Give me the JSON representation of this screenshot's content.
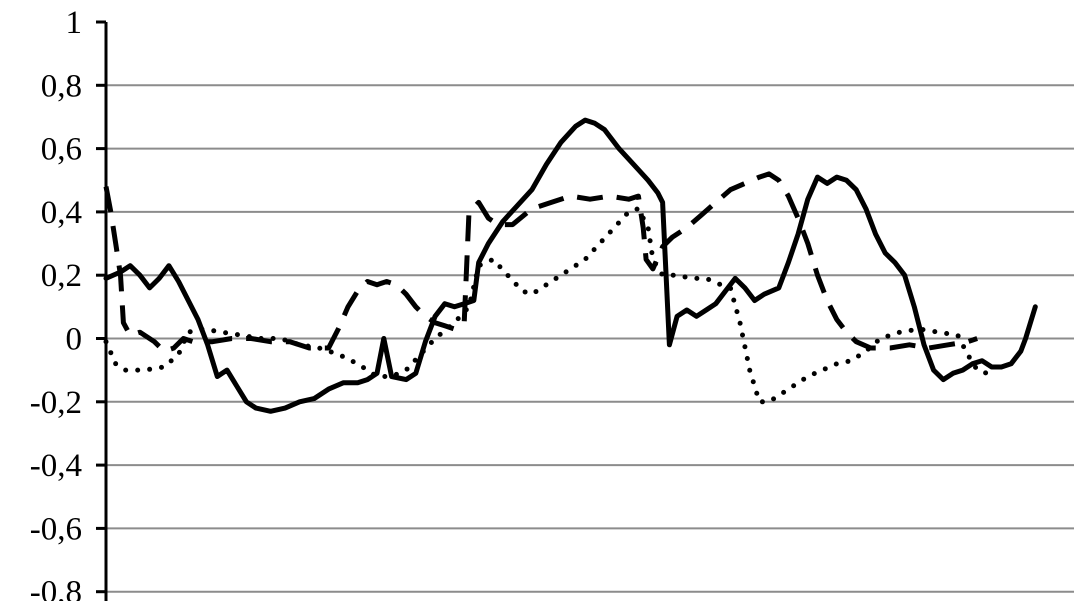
{
  "chart_data": {
    "type": "line",
    "title": "",
    "xlabel": "",
    "ylabel": "",
    "ylim": [
      -0.8,
      1.0
    ],
    "xlim": [
      0,
      100
    ],
    "grid": true,
    "legend": "none",
    "y_ticks": [
      {
        "value": 1.0,
        "label": "1"
      },
      {
        "value": 0.8,
        "label": "0,8"
      },
      {
        "value": 0.6,
        "label": "0,6"
      },
      {
        "value": 0.4,
        "label": "0,4"
      },
      {
        "value": 0.2,
        "label": "0,2"
      },
      {
        "value": 0.0,
        "label": "0"
      },
      {
        "value": -0.2,
        "label": "-0,2"
      },
      {
        "value": -0.4,
        "label": "-0,4"
      },
      {
        "value": -0.6,
        "label": "-0,6"
      },
      {
        "value": -0.8,
        "label": "-0,8"
      }
    ],
    "series": [
      {
        "style": "solid",
        "color": "#000000",
        "points": [
          [
            0,
            0.19
          ],
          [
            1.5,
            0.21
          ],
          [
            2.5,
            0.23
          ],
          [
            3.5,
            0.2
          ],
          [
            4.5,
            0.16
          ],
          [
            5.5,
            0.19
          ],
          [
            6.5,
            0.23
          ],
          [
            7.5,
            0.18
          ],
          [
            8.5,
            0.12
          ],
          [
            9.5,
            0.06
          ],
          [
            10.5,
            -0.02
          ],
          [
            11.5,
            -0.12
          ],
          [
            12.5,
            -0.1
          ],
          [
            13.5,
            -0.15
          ],
          [
            14.5,
            -0.2
          ],
          [
            15.5,
            -0.22
          ],
          [
            17,
            -0.23
          ],
          [
            18.5,
            -0.22
          ],
          [
            20,
            -0.2
          ],
          [
            21.5,
            -0.19
          ],
          [
            23,
            -0.16
          ],
          [
            24.5,
            -0.14
          ],
          [
            26,
            -0.14
          ],
          [
            27,
            -0.13
          ],
          [
            28,
            -0.11
          ],
          [
            28.7,
            0.0
          ],
          [
            29.5,
            -0.12
          ],
          [
            31,
            -0.13
          ],
          [
            32,
            -0.11
          ],
          [
            33,
            -0.01
          ],
          [
            34,
            0.07
          ],
          [
            35,
            0.11
          ],
          [
            36,
            0.1
          ],
          [
            37,
            0.11
          ],
          [
            38,
            0.12
          ],
          [
            38.5,
            0.24
          ],
          [
            39.5,
            0.3
          ],
          [
            41,
            0.37
          ],
          [
            42.5,
            0.42
          ],
          [
            44,
            0.47
          ],
          [
            45.5,
            0.55
          ],
          [
            47,
            0.62
          ],
          [
            48.5,
            0.67
          ],
          [
            49.5,
            0.69
          ],
          [
            50.5,
            0.68
          ],
          [
            51.5,
            0.66
          ],
          [
            53,
            0.6
          ],
          [
            54.5,
            0.55
          ],
          [
            56,
            0.5
          ],
          [
            57,
            0.46
          ],
          [
            57.5,
            0.43
          ],
          [
            58.2,
            -0.02
          ],
          [
            59,
            0.07
          ],
          [
            60,
            0.09
          ],
          [
            61,
            0.07
          ],
          [
            62,
            0.09
          ],
          [
            63,
            0.11
          ],
          [
            64,
            0.15
          ],
          [
            65,
            0.19
          ],
          [
            66,
            0.16
          ],
          [
            67,
            0.12
          ],
          [
            68,
            0.14
          ],
          [
            69.5,
            0.16
          ],
          [
            70.5,
            0.24
          ],
          [
            71.5,
            0.33
          ],
          [
            72.5,
            0.44
          ],
          [
            73.5,
            0.51
          ],
          [
            74.5,
            0.49
          ],
          [
            75.5,
            0.51
          ],
          [
            76.5,
            0.5
          ],
          [
            77.5,
            0.47
          ],
          [
            78.5,
            0.41
          ],
          [
            79.5,
            0.33
          ],
          [
            80.5,
            0.27
          ],
          [
            81.5,
            0.24
          ],
          [
            82.5,
            0.2
          ],
          [
            83.5,
            0.1
          ],
          [
            84.5,
            -0.02
          ],
          [
            85.5,
            -0.1
          ],
          [
            86.5,
            -0.13
          ],
          [
            87.5,
            -0.11
          ],
          [
            88.5,
            -0.1
          ],
          [
            89.5,
            -0.08
          ],
          [
            90.5,
            -0.07
          ],
          [
            91.5,
            -0.09
          ],
          [
            92.5,
            -0.09
          ],
          [
            93.5,
            -0.08
          ],
          [
            94.5,
            -0.04
          ],
          [
            95,
            0.0
          ],
          [
            96,
            0.1
          ]
        ]
      },
      {
        "style": "dashed",
        "color": "#000000",
        "points": [
          [
            0,
            0.48
          ],
          [
            0.5,
            0.4
          ],
          [
            1,
            0.3
          ],
          [
            1.5,
            0.2
          ],
          [
            1.8,
            0.05
          ],
          [
            2.5,
            0.01
          ],
          [
            3.5,
            0.02
          ],
          [
            5,
            -0.01
          ],
          [
            6,
            -0.04
          ],
          [
            7,
            -0.03
          ],
          [
            8,
            0.0
          ],
          [
            9,
            -0.01
          ],
          [
            11,
            -0.01
          ],
          [
            13,
            0.0
          ],
          [
            15,
            0.0
          ],
          [
            17,
            -0.01
          ],
          [
            19,
            -0.01
          ],
          [
            21,
            -0.03
          ],
          [
            23,
            -0.03
          ],
          [
            24,
            0.03
          ],
          [
            25,
            0.1
          ],
          [
            26,
            0.15
          ],
          [
            27,
            0.18
          ],
          [
            28,
            0.17
          ],
          [
            29,
            0.18
          ],
          [
            30,
            0.17
          ],
          [
            31,
            0.14
          ],
          [
            32,
            0.1
          ],
          [
            33,
            0.07
          ],
          [
            34,
            0.05
          ],
          [
            35,
            0.04
          ],
          [
            36,
            0.03
          ],
          [
            37,
            0.05
          ],
          [
            37.5,
            0.4
          ],
          [
            38.5,
            0.43
          ],
          [
            39.5,
            0.38
          ],
          [
            40.5,
            0.36
          ],
          [
            42,
            0.36
          ],
          [
            44,
            0.41
          ],
          [
            46,
            0.43
          ],
          [
            48,
            0.45
          ],
          [
            50,
            0.44
          ],
          [
            52,
            0.45
          ],
          [
            54,
            0.44
          ],
          [
            55,
            0.45
          ],
          [
            55.5,
            0.35
          ],
          [
            55.8,
            0.25
          ],
          [
            56.5,
            0.22
          ],
          [
            57.5,
            0.29
          ],
          [
            58.5,
            0.32
          ],
          [
            60,
            0.35
          ],
          [
            61.5,
            0.39
          ],
          [
            63,
            0.43
          ],
          [
            64.5,
            0.47
          ],
          [
            66,
            0.49
          ],
          [
            67.5,
            0.51
          ],
          [
            68.5,
            0.52
          ],
          [
            69.5,
            0.5
          ],
          [
            70.5,
            0.45
          ],
          [
            71.5,
            0.38
          ],
          [
            72.5,
            0.3
          ],
          [
            73.5,
            0.2
          ],
          [
            74.5,
            0.12
          ],
          [
            75.5,
            0.06
          ],
          [
            76.5,
            0.02
          ],
          [
            77.5,
            -0.01
          ],
          [
            79,
            -0.03
          ],
          [
            81,
            -0.03
          ],
          [
            83,
            -0.02
          ],
          [
            85,
            -0.03
          ],
          [
            87,
            -0.02
          ],
          [
            89,
            -0.01
          ],
          [
            90,
            0.0
          ]
        ]
      },
      {
        "style": "dotted",
        "color": "#000000",
        "points": [
          [
            0,
            -0.01
          ],
          [
            1,
            -0.08
          ],
          [
            2,
            -0.1
          ],
          [
            4,
            -0.1
          ],
          [
            6,
            -0.09
          ],
          [
            7.5,
            -0.05
          ],
          [
            8.5,
            0.02
          ],
          [
            10,
            0.03
          ],
          [
            12,
            0.02
          ],
          [
            14,
            0.01
          ],
          [
            16,
            0.0
          ],
          [
            18,
            0.0
          ],
          [
            20,
            -0.02
          ],
          [
            22,
            -0.03
          ],
          [
            24,
            -0.05
          ],
          [
            26,
            -0.08
          ],
          [
            28,
            -0.12
          ],
          [
            29.5,
            -0.12
          ],
          [
            31,
            -0.1
          ],
          [
            32.5,
            -0.05
          ],
          [
            34,
            0.0
          ],
          [
            36,
            0.05
          ],
          [
            37.5,
            0.1
          ],
          [
            38.5,
            0.23
          ],
          [
            40,
            0.25
          ],
          [
            41.5,
            0.2
          ],
          [
            43,
            0.15
          ],
          [
            44,
            0.14
          ],
          [
            45,
            0.16
          ],
          [
            46.5,
            0.19
          ],
          [
            48,
            0.22
          ],
          [
            49.5,
            0.25
          ],
          [
            51,
            0.3
          ],
          [
            52.5,
            0.35
          ],
          [
            54,
            0.4
          ],
          [
            55,
            0.41
          ],
          [
            56,
            0.35
          ],
          [
            56.5,
            0.25
          ],
          [
            57.5,
            0.2
          ],
          [
            59,
            0.2
          ],
          [
            60.5,
            0.19
          ],
          [
            62,
            0.19
          ],
          [
            63.5,
            0.17
          ],
          [
            64.5,
            0.16
          ],
          [
            65.5,
            0.05
          ],
          [
            66.5,
            -0.1
          ],
          [
            67.5,
            -0.2
          ],
          [
            68.5,
            -0.2
          ],
          [
            69.5,
            -0.18
          ],
          [
            71,
            -0.15
          ],
          [
            72.5,
            -0.12
          ],
          [
            74,
            -0.1
          ],
          [
            75.5,
            -0.08
          ],
          [
            77,
            -0.07
          ],
          [
            78.5,
            -0.04
          ],
          [
            80,
            0.0
          ],
          [
            82,
            0.02
          ],
          [
            84,
            0.03
          ],
          [
            86,
            0.02
          ],
          [
            88,
            0.01
          ],
          [
            89,
            -0.05
          ],
          [
            90,
            -0.1
          ],
          [
            91,
            -0.11
          ]
        ]
      }
    ]
  }
}
